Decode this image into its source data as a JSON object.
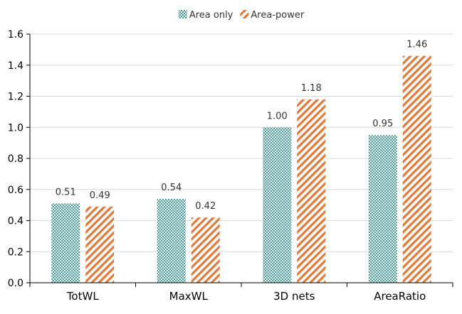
{
  "chart_data": {
    "type": "bar",
    "title": "",
    "xlabel": "",
    "ylabel": "",
    "categories": [
      "TotWL",
      "MaxWL",
      "3D nets",
      "AreaRatio"
    ],
    "series": [
      {
        "name": "Area only",
        "values": [
          0.51,
          0.54,
          1.0,
          0.95
        ],
        "labels": [
          "0.51",
          "0.54",
          "1.00",
          "0.95"
        ],
        "color": "#5fa3a3",
        "pattern": "crosshatch"
      },
      {
        "name": "Area-power",
        "values": [
          0.49,
          0.42,
          1.18,
          1.46
        ],
        "labels": [
          "0.49",
          "0.42",
          "1.18",
          "1.46"
        ],
        "color": "#e07a3a",
        "pattern": "diagonal-stripes"
      }
    ],
    "ylim": [
      0,
      1.6
    ],
    "yticks": [
      "0.0",
      "0.2",
      "0.4",
      "0.6",
      "0.8",
      "1.0",
      "1.2",
      "1.4",
      "1.6"
    ],
    "grid": true,
    "legend": "top-center"
  }
}
